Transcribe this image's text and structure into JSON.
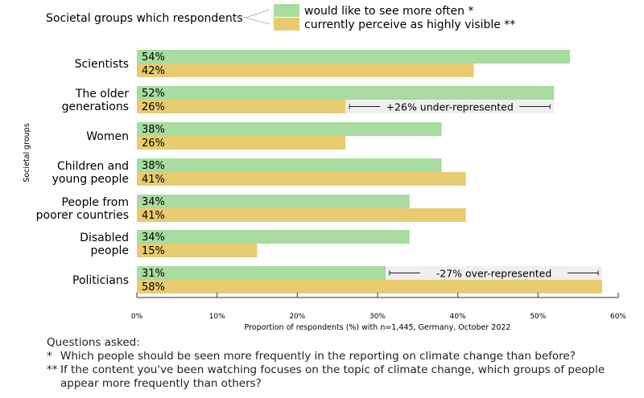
{
  "legend": {
    "intro": "Societal groups which respondents",
    "items": [
      {
        "label": "would like to see more often *",
        "color": "#a8dca0"
      },
      {
        "label": "currently perceive as highly visible **",
        "color": "#e8cb70"
      }
    ]
  },
  "chart_data": {
    "type": "bar",
    "orientation": "horizontal",
    "ylabel": "Societal groups",
    "xlabel": "Proportion of respondents (%) with n=1,445, Germany, October 2022",
    "xlim": [
      0,
      60
    ],
    "xticks": [
      "0%",
      "10%",
      "20%",
      "30%",
      "40%",
      "50%",
      "60%"
    ],
    "categories": [
      [
        "Scientists"
      ],
      [
        "The older",
        "generations"
      ],
      [
        "Women"
      ],
      [
        "Children and",
        "young people"
      ],
      [
        "People from",
        "poorer countries"
      ],
      [
        "Disabled",
        "people"
      ],
      [
        "Politicians"
      ]
    ],
    "series": [
      {
        "name": "would like to see more often *",
        "color": "#a8dca0",
        "values": [
          54,
          52,
          38,
          38,
          34,
          34,
          31
        ]
      },
      {
        "name": "currently perceive as highly visible **",
        "color": "#e8cb70",
        "values": [
          42,
          26,
          26,
          41,
          41,
          15,
          58
        ]
      }
    ],
    "annotations": [
      {
        "category_index": 1,
        "text": "+26% under-represented"
      },
      {
        "category_index": 6,
        "text": "-27% over-represented"
      }
    ],
    "grid": false,
    "legend_position": "top"
  },
  "footer": {
    "heading": "Questions asked:",
    "q1_marker": "*",
    "q1": "Which people should be seen more frequently in the reporting on climate change than before?",
    "q2_marker": "**",
    "q2": "If the content you've been watching focuses on the topic of climate change, which groups of people appear more frequently than others?"
  }
}
